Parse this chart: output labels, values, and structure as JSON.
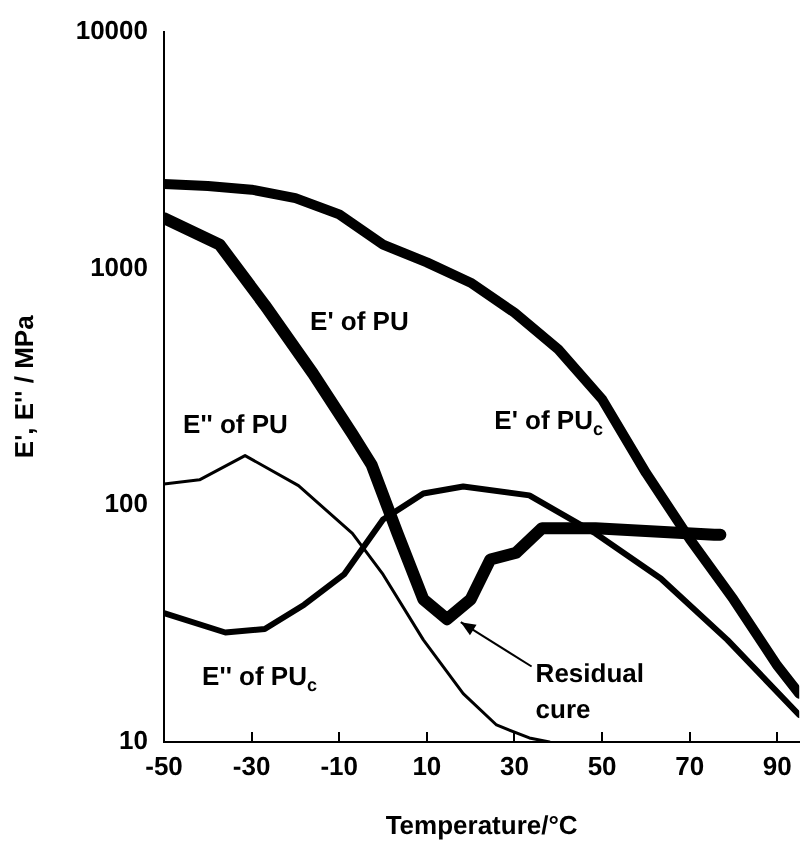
{
  "chart_data": {
    "type": "line",
    "xlabel": "Temperature/°C",
    "ylabel": "E', E'' / MPa",
    "log": "y",
    "xlim": [
      -50,
      95
    ],
    "xticks": [
      -50,
      -30,
      -10,
      10,
      30,
      50,
      70,
      90
    ],
    "ylim": [
      10,
      10000
    ],
    "yticks": [
      10,
      100,
      1000,
      10000
    ],
    "grid": false,
    "legend": false,
    "marker": "none",
    "line_style": "solid",
    "series": [
      {
        "name": "E' of PU$_{c}$",
        "color": "#000000",
        "x": [
          -50,
          -40,
          -30,
          -20,
          -10,
          0,
          10,
          20,
          30,
          40,
          50,
          60,
          70,
          80,
          90,
          95
        ],
        "values": [
          2270,
          2230,
          2150,
          1980,
          1690,
          1260,
          1060,
          870,
          650,
          455,
          280,
          137,
          72,
          40,
          21,
          16
        ]
      },
      {
        "name": "E' of PU",
        "color": "#000000",
        "x": [
          -50,
          -37.3,
          -27,
          -16,
          -7,
          -2.6,
          3.3,
          9.2,
          14.6,
          20,
          24.5,
          30.4,
          36.3,
          48.5,
          75.6,
          77
        ],
        "values": [
          1630,
          1260,
          700,
          360,
          200,
          148,
          76,
          40,
          33,
          40,
          59,
          63,
          80,
          80,
          75,
          75
        ]
      },
      {
        "name": "E'' of PU",
        "color": "#000000",
        "x": [
          -50,
          -41.9,
          -31.5,
          -19.3,
          -7,
          0,
          9.2,
          18.3,
          25.9,
          33.4,
          38
        ],
        "values": [
          123,
          128,
          162,
          121,
          76,
          51,
          27,
          16,
          11.8,
          10.4,
          10
        ]
      },
      {
        "name": "E'' of PU$_{c}$",
        "color": "#000000",
        "x": [
          -50,
          -36,
          -27,
          -18,
          -8.9,
          0,
          9.2,
          18.3,
          33.4,
          48.5,
          63.4,
          78.6,
          95
        ],
        "values": [
          35,
          29,
          30,
          38,
          51,
          87,
          112,
          120,
          110,
          76,
          49,
          27,
          13
        ]
      }
    ],
    "annotations": [
      {
        "text": "Residual cure",
        "x": 15,
        "y": 34
      }
    ]
  }
}
